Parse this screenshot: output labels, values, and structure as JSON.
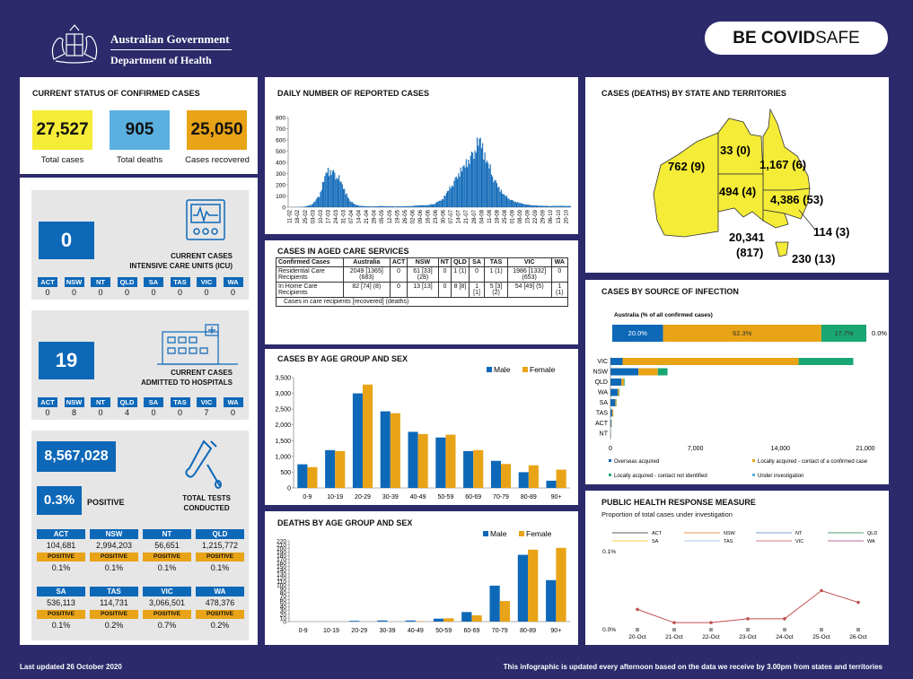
{
  "header": {
    "gov_line1": "Australian Government",
    "gov_line2": "Department of Health",
    "covid_bold": "BE COVID",
    "covid_thin": "SAFE"
  },
  "current_status": {
    "title": "CURRENT STATUS OF CONFIRMED CASES",
    "total_cases": "27,527",
    "total_cases_label": "Total cases",
    "total_deaths": "905",
    "total_deaths_label": "Total deaths",
    "recovered": "25,050",
    "recovered_label": "Cases recovered"
  },
  "icu": {
    "value": "0",
    "caption1": "CURRENT CASES",
    "caption2": "INTENSIVE CARE UNITS (ICU)",
    "states": [
      "ACT",
      "NSW",
      "NT",
      "QLD",
      "SA",
      "TAS",
      "VIC",
      "WA"
    ],
    "values": [
      "0",
      "0",
      "0",
      "0",
      "0",
      "0",
      "0",
      "0"
    ]
  },
  "hospital": {
    "value": "19",
    "caption1": "CURRENT CASES",
    "caption2": "ADMITTED TO HOSPITALS",
    "states": [
      "ACT",
      "NSW",
      "NT",
      "QLD",
      "SA",
      "TAS",
      "VIC",
      "WA"
    ],
    "values": [
      "0",
      "8",
      "0",
      "4",
      "0",
      "0",
      "7",
      "0"
    ]
  },
  "tests": {
    "total": "8,567,028",
    "positive_pct": "0.3%",
    "positive_label": "POSITIVE",
    "caption1": "TOTAL TESTS",
    "caption2": "CONDUCTED",
    "positive_badge": "POSITIVE",
    "row1": [
      {
        "state": "ACT",
        "tests": "104,681",
        "pct": "0.1%"
      },
      {
        "state": "NSW",
        "tests": "2,994,203",
        "pct": "0.1%"
      },
      {
        "state": "NT",
        "tests": "56,651",
        "pct": "0.1%"
      },
      {
        "state": "QLD",
        "tests": "1,215,772",
        "pct": "0.1%"
      }
    ],
    "row2": [
      {
        "state": "SA",
        "tests": "536,113",
        "pct": "0.1%"
      },
      {
        "state": "TAS",
        "tests": "114,731",
        "pct": "0.2%"
      },
      {
        "state": "VIC",
        "tests": "3,066,501",
        "pct": "0.7%"
      },
      {
        "state": "WA",
        "tests": "478,376",
        "pct": "0.2%"
      }
    ]
  },
  "aged_care": {
    "title": "CASES IN AGED CARE SERVICES",
    "headers": [
      "Confirmed Cases",
      "Australia",
      "ACT",
      "NSW",
      "NT",
      "QLD",
      "SA",
      "TAS",
      "VIC",
      "WA"
    ],
    "rows": [
      [
        "Residential Care Recipients",
        "2049 [1365] (683)",
        "0",
        "61 [33] (28)",
        "0",
        "1 (1)",
        "0",
        "1 (1)",
        "1986 [1332] (653)",
        "0"
      ],
      [
        "In Home Care Recipients",
        "82 [74] (8)",
        "0",
        "13 [13]",
        "0",
        "8 [8]",
        "1 [1]",
        "5 [3] (2)",
        "54 [49] (5)",
        "1 (1)"
      ]
    ],
    "note": "Cases in care recipients [recovered] (deaths)"
  },
  "footer": {
    "left": "Last updated 26 October 2020",
    "right": "This infographic is updated every afternoon based on the data we receive by 3.00pm from states and territories"
  },
  "colors": {
    "navy": "#2c2a6b",
    "blue": "#0d68b8",
    "orange": "#e8a317",
    "yellow": "#f4ec37",
    "green": "#1aa672",
    "lightblue": "#5ab0e0"
  },
  "chart_data": [
    {
      "type": "bar",
      "title": "DAILY NUMBER OF REPORTED CASES",
      "ylim": [
        0,
        800
      ],
      "yticks": [
        0,
        100,
        200,
        300,
        400,
        500,
        600,
        700,
        800
      ],
      "tick_labels": [
        "11-02",
        "18-02",
        "25-02",
        "03-03",
        "10-03",
        "17-03",
        "24-03",
        "31-03",
        "07-04",
        "14-04",
        "21-04",
        "28-04",
        "05-05",
        "12-05",
        "19-05",
        "26-05",
        "02-06",
        "09-06",
        "16-06",
        "23-06",
        "30-06",
        "07-07",
        "14-07",
        "21-07",
        "28-07",
        "04-08",
        "11-08",
        "18-08",
        "25-08",
        "01-09",
        "08-09",
        "15-09",
        "22-09",
        "29-09",
        "06-10",
        "13-10",
        "20-10"
      ],
      "weekly_max": [
        0,
        2,
        5,
        25,
        120,
        380,
        360,
        230,
        60,
        18,
        10,
        8,
        12,
        10,
        8,
        10,
        12,
        20,
        20,
        35,
        80,
        190,
        330,
        430,
        560,
        690,
        430,
        260,
        130,
        75,
        45,
        28,
        18,
        15,
        12,
        14,
        13
      ]
    },
    {
      "type": "bar",
      "title": "CASES BY AGE GROUP AND SEX",
      "categories": [
        "0-9",
        "10-19",
        "20-29",
        "30-39",
        "40-49",
        "50-59",
        "60-69",
        "70-79",
        "80-89",
        "90+"
      ],
      "ylim": [
        0,
        3500
      ],
      "yticks": [
        "0",
        "500",
        "1,000",
        "1,500",
        "2,000",
        "2,500",
        "3,000",
        "3,500"
      ],
      "series": [
        {
          "name": "Male",
          "values": [
            750,
            1200,
            3000,
            2430,
            1780,
            1600,
            1170,
            860,
            500,
            230
          ]
        },
        {
          "name": "Female",
          "values": [
            660,
            1170,
            3280,
            2370,
            1710,
            1690,
            1200,
            760,
            720,
            580
          ]
        }
      ]
    },
    {
      "type": "bar",
      "title": "DEATHS BY AGE GROUP AND SEX",
      "categories": [
        "0-9",
        "10-19",
        "20-29",
        "30-39",
        "40-49",
        "50-59",
        "60-69",
        "70-79",
        "80-89",
        "90+"
      ],
      "ylim": [
        0,
        220
      ],
      "yticks": [
        0,
        10,
        20,
        30,
        40,
        50,
        60,
        70,
        80,
        90,
        100,
        110,
        120,
        130,
        140,
        150,
        160,
        170,
        180,
        190,
        200,
        210,
        220
      ],
      "series": [
        {
          "name": "Male",
          "values": [
            0,
            0,
            2,
            3,
            3,
            8,
            26,
            98,
            182,
            113
          ]
        },
        {
          "name": "Female",
          "values": [
            0,
            0,
            0,
            0,
            1,
            9,
            17,
            56,
            196,
            201
          ]
        }
      ]
    },
    {
      "type": "bar",
      "title": "CASES BY SOURCE OF INFECTION",
      "subtitle": "Australia (% of all confirmed cases)",
      "australia_pct": [
        {
          "name": "Overseas acquired",
          "value": "20.0%",
          "v": 20.0
        },
        {
          "name": "Locally acquired - contact of a confirmed case",
          "value": "62.3%",
          "v": 62.3
        },
        {
          "name": "Locally acquired - contact not identified",
          "value": "17.7%",
          "v": 17.7
        },
        {
          "name": "Under investigation",
          "value": "0.0%",
          "v": 0.0
        }
      ],
      "categories": [
        "VIC",
        "NSW",
        "QLD",
        "WA",
        "SA",
        "TAS",
        "ACT",
        "NT"
      ],
      "xlim": [
        0,
        21000
      ],
      "xticks": [
        "0",
        "7,000",
        "14,000",
        "21,000"
      ],
      "series": [
        {
          "name": "Overseas acquired",
          "values": [
            1000,
            2300,
            900,
            600,
            400,
            140,
            70,
            30
          ]
        },
        {
          "name": "Locally acquired - contact of a confirmed case",
          "values": [
            14500,
            1600,
            200,
            100,
            80,
            80,
            30,
            0
          ]
        },
        {
          "name": "Locally acquired - contact not identified",
          "values": [
            4500,
            800,
            60,
            40,
            20,
            10,
            10,
            0
          ]
        },
        {
          "name": "Under investigation",
          "values": [
            0,
            0,
            0,
            0,
            0,
            0,
            0,
            0
          ]
        }
      ]
    },
    {
      "type": "line",
      "title": "PUBLIC HEALTH RESPONSE MEASURE",
      "subtitle": "Proportion of total cases under investigation",
      "categories": [
        "20-Oct",
        "21-Oct",
        "22-Oct",
        "23-Oct",
        "24-Oct",
        "25-Oct",
        "26-Oct"
      ],
      "yticks": [
        "0.0%",
        "0.1%"
      ],
      "ylim": [
        0,
        0.1
      ],
      "series": [
        {
          "name": "ACT",
          "values": [
            0,
            0,
            0,
            0,
            0,
            0,
            0
          ]
        },
        {
          "name": "NSW",
          "values": [
            0,
            0,
            0,
            0,
            0,
            0,
            0
          ]
        },
        {
          "name": "NT",
          "values": [
            0,
            0,
            0,
            0,
            0,
            0,
            0
          ]
        },
        {
          "name": "QLD",
          "values": [
            0,
            0,
            0,
            0,
            0,
            0,
            0
          ]
        },
        {
          "name": "SA",
          "values": [
            0,
            0,
            0,
            0,
            0,
            0,
            0
          ]
        },
        {
          "name": "TAS",
          "values": [
            0,
            0,
            0,
            0,
            0,
            0,
            0
          ]
        },
        {
          "name": "VIC",
          "values": [
            0.026,
            0.009,
            0.009,
            0.014,
            0.014,
            0.05,
            0.035
          ]
        },
        {
          "name": "WA",
          "values": [
            0,
            0,
            0,
            0,
            0,
            0,
            0
          ]
        }
      ],
      "series_colors": [
        "#222222",
        "#e26b0a",
        "#4f81bd",
        "#1e7b44",
        "#f0c000",
        "#8eb4e3",
        "#c0504d",
        "#9e3a7a"
      ]
    },
    {
      "type": "table",
      "title": "CASES (DEATHS) BY STATE AND TERRITORIES",
      "rows": [
        {
          "state": "WA",
          "label": "762 (9)"
        },
        {
          "state": "NT",
          "label": "33 (0)"
        },
        {
          "state": "QLD",
          "label": "1,167 (6)"
        },
        {
          "state": "SA",
          "label": "494 (4)"
        },
        {
          "state": "NSW",
          "label": "4,386 (53)"
        },
        {
          "state": "ACT",
          "label": "114 (3)"
        },
        {
          "state": "VIC",
          "label_line1": "20,341",
          "label_line2": "(817)"
        },
        {
          "state": "TAS",
          "label": "230 (13)"
        }
      ]
    }
  ]
}
